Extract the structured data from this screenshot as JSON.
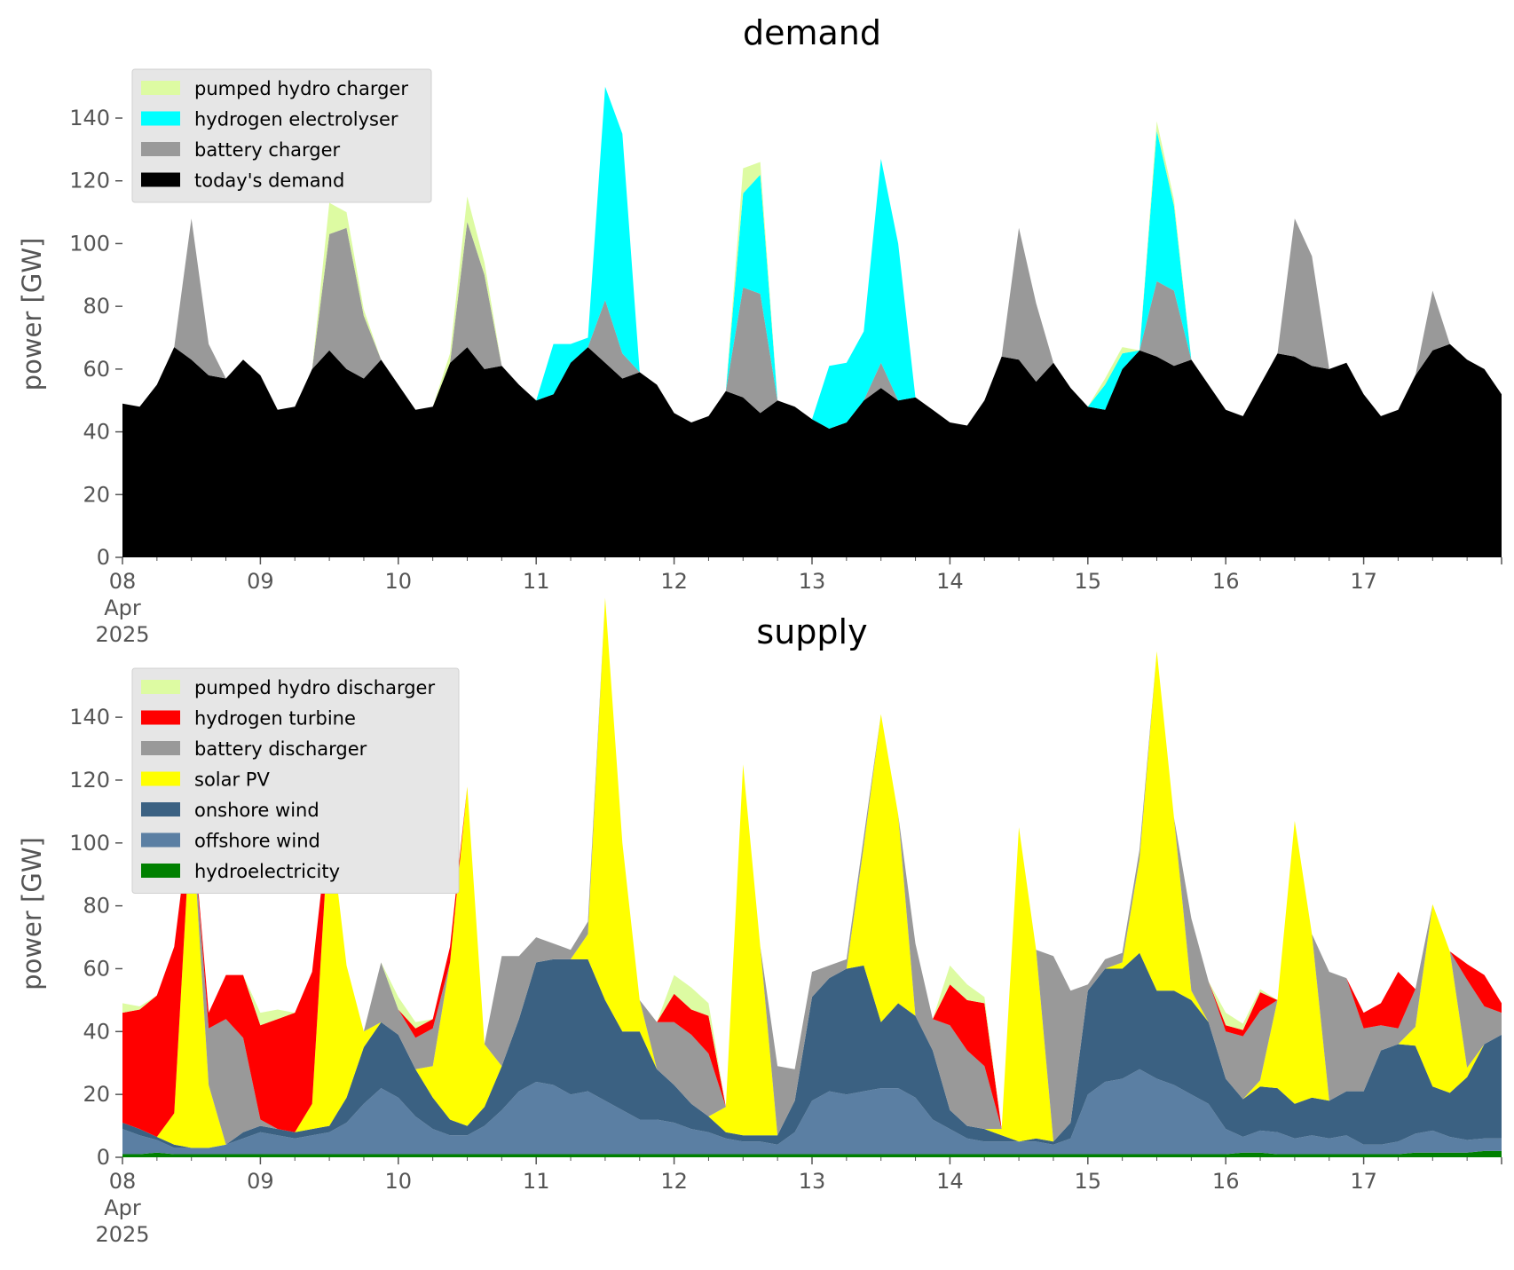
{
  "chart_data": [
    {
      "type": "area",
      "title": "demand",
      "ylabel": "power [GW]",
      "xlabel": "",
      "ylim": [
        0,
        155
      ],
      "yticks": [
        0,
        20,
        40,
        60,
        80,
        100,
        120,
        140
      ],
      "xlim": [
        0,
        10
      ],
      "xticks": [
        {
          "x": 0,
          "label": "08\nApr\n2025"
        },
        {
          "x": 1,
          "label": "09"
        },
        {
          "x": 2,
          "label": "10"
        },
        {
          "x": 3,
          "label": "11"
        },
        {
          "x": 4,
          "label": "12"
        },
        {
          "x": 5,
          "label": "13"
        },
        {
          "x": 6,
          "label": "14"
        },
        {
          "x": 7,
          "label": "15"
        },
        {
          "x": 8,
          "label": "16"
        },
        {
          "x": 9,
          "label": "17"
        }
      ],
      "grid": false,
      "legend_position": "upper-left",
      "legend_order": [
        "pumped hydro charger",
        "hydrogen electrolyser",
        "battery charger",
        "today's demand"
      ],
      "x": [
        0,
        0.125,
        0.25,
        0.375,
        0.5,
        0.625,
        0.75,
        0.875,
        1,
        1.125,
        1.25,
        1.375,
        1.5,
        1.625,
        1.75,
        1.875,
        2,
        2.125,
        2.25,
        2.375,
        2.5,
        2.625,
        2.75,
        2.875,
        3,
        3.125,
        3.25,
        3.375,
        3.5,
        3.625,
        3.75,
        3.875,
        4,
        4.125,
        4.25,
        4.375,
        4.5,
        4.625,
        4.75,
        4.875,
        5,
        5.125,
        5.25,
        5.375,
        5.5,
        5.625,
        5.75,
        5.875,
        6,
        6.125,
        6.25,
        6.375,
        6.5,
        6.625,
        6.75,
        6.875,
        7,
        7.125,
        7.25,
        7.375,
        7.5,
        7.625,
        7.75,
        7.875,
        8,
        8.125,
        8.25,
        8.375,
        8.5,
        8.625,
        8.75,
        8.875,
        9,
        9.125,
        9.25,
        9.375,
        9.5,
        9.625,
        9.75,
        9.875,
        10
      ],
      "series": [
        {
          "name": "today's demand",
          "color": "#000000",
          "values": [
            49,
            48,
            55,
            67,
            63,
            58,
            57,
            63,
            58,
            47,
            48,
            60,
            66,
            60,
            57,
            63,
            55,
            47,
            48,
            62,
            67,
            60,
            61,
            55,
            50,
            52,
            62,
            67,
            62,
            57,
            59,
            55,
            46,
            43,
            45,
            53,
            51,
            46,
            50,
            48,
            44,
            41,
            43,
            50,
            54,
            50,
            51,
            47,
            43,
            42,
            50,
            64,
            63,
            56,
            62,
            54,
            48,
            47,
            60,
            66,
            64,
            61,
            63,
            55,
            47,
            45,
            55,
            65,
            64,
            61,
            60,
            62,
            52,
            45,
            47,
            58,
            66,
            68,
            63,
            60,
            52
          ]
        },
        {
          "name": "battery charger",
          "color": "#999999",
          "values": [
            0,
            0,
            0,
            0,
            45,
            10,
            0,
            0,
            0,
            0,
            0,
            0,
            37,
            45,
            20,
            0,
            0,
            0,
            0,
            0,
            40,
            30,
            0,
            0,
            0,
            0,
            0,
            0,
            20,
            8,
            0,
            0,
            0,
            0,
            0,
            0,
            35,
            38,
            0,
            0,
            0,
            0,
            0,
            0,
            8,
            0,
            0,
            0,
            0,
            0,
            0,
            0,
            42,
            25,
            0,
            0,
            0,
            0,
            0,
            0,
            24,
            24,
            0,
            0,
            0,
            0,
            0,
            0,
            44,
            35,
            0,
            0,
            0,
            0,
            0,
            0,
            19,
            0,
            0,
            0,
            0
          ]
        },
        {
          "name": "hydrogen electrolyser",
          "color": "#00ffff",
          "values": [
            0,
            0,
            0,
            0,
            0,
            0,
            0,
            0,
            0,
            0,
            0,
            0,
            0,
            0,
            0,
            0,
            0,
            0,
            0,
            0,
            0,
            0,
            0,
            0,
            0,
            16,
            6,
            3,
            68,
            70,
            0,
            0,
            0,
            0,
            0,
            0,
            30,
            38,
            0,
            0,
            0,
            20,
            19,
            22,
            65,
            50,
            0,
            0,
            0,
            0,
            0,
            0,
            0,
            0,
            0,
            0,
            0,
            8,
            5,
            0,
            48,
            27,
            0,
            0,
            0,
            0,
            0,
            0,
            0,
            0,
            0,
            0,
            0,
            0,
            0,
            0,
            0,
            0,
            0,
            0,
            0
          ]
        },
        {
          "name": "pumped hydro charger",
          "color": "#ddfba2",
          "values": [
            0,
            0,
            0,
            0,
            0,
            0,
            0,
            0,
            0,
            0,
            0,
            0,
            10,
            5,
            2,
            0,
            0,
            0,
            0,
            3,
            8,
            4,
            0,
            0,
            0,
            0,
            0,
            0,
            0,
            0,
            0,
            0,
            0,
            0,
            0,
            0,
            8,
            4,
            0,
            0,
            0,
            0,
            0,
            0,
            0,
            0,
            0,
            0,
            0,
            0,
            0,
            0,
            0,
            0,
            0,
            0,
            0,
            2,
            2,
            0,
            3,
            2,
            0,
            0,
            0,
            0,
            0,
            0,
            0,
            0,
            0,
            0,
            0,
            0,
            0,
            0,
            0,
            0,
            0,
            0,
            0
          ]
        }
      ]
    },
    {
      "type": "area",
      "title": "supply",
      "ylabel": "power [GW]",
      "xlabel": "",
      "ylim": [
        0,
        155
      ],
      "yticks": [
        0,
        20,
        40,
        60,
        80,
        100,
        120,
        140
      ],
      "xlim": [
        0,
        10
      ],
      "xticks": [
        {
          "x": 0,
          "label": "08\nApr\n2025"
        },
        {
          "x": 1,
          "label": "09"
        },
        {
          "x": 2,
          "label": "10"
        },
        {
          "x": 3,
          "label": "11"
        },
        {
          "x": 4,
          "label": "12"
        },
        {
          "x": 5,
          "label": "13"
        },
        {
          "x": 6,
          "label": "14"
        },
        {
          "x": 7,
          "label": "15"
        },
        {
          "x": 8,
          "label": "16"
        },
        {
          "x": 9,
          "label": "17"
        }
      ],
      "grid": false,
      "legend_position": "upper-left",
      "legend_order": [
        "pumped hydro discharger",
        "hydrogen turbine",
        "battery discharger",
        "solar PV",
        "onshore wind",
        "offshore wind",
        "hydroelectricity"
      ],
      "x": [
        0,
        0.125,
        0.25,
        0.375,
        0.5,
        0.625,
        0.75,
        0.875,
        1,
        1.125,
        1.25,
        1.375,
        1.5,
        1.625,
        1.75,
        1.875,
        2,
        2.125,
        2.25,
        2.375,
        2.5,
        2.625,
        2.75,
        2.875,
        3,
        3.125,
        3.25,
        3.375,
        3.5,
        3.625,
        3.75,
        3.875,
        4,
        4.125,
        4.25,
        4.375,
        4.5,
        4.625,
        4.75,
        4.875,
        5,
        5.125,
        5.25,
        5.375,
        5.5,
        5.625,
        5.75,
        5.875,
        6,
        6.125,
        6.25,
        6.375,
        6.5,
        6.625,
        6.75,
        6.875,
        7,
        7.125,
        7.25,
        7.375,
        7.5,
        7.625,
        7.75,
        7.875,
        8,
        8.125,
        8.25,
        8.375,
        8.5,
        8.625,
        8.75,
        8.875,
        9,
        9.125,
        9.25,
        9.375,
        9.5,
        9.625,
        9.75,
        9.875,
        10
      ],
      "series": [
        {
          "name": "hydroelectricity",
          "color": "#008000",
          "values": [
            1,
            1,
            1.5,
            1,
            1,
            1,
            1,
            1,
            1,
            1,
            1,
            1,
            1,
            1,
            1,
            1,
            1,
            1,
            1,
            1,
            1,
            1,
            1,
            1,
            1,
            1,
            1,
            1,
            1,
            1,
            1,
            1,
            1,
            1,
            1,
            1,
            1,
            1,
            1,
            1,
            1,
            1,
            1,
            1,
            1,
            1,
            1,
            1,
            1,
            1,
            1,
            1,
            1,
            1,
            1,
            1,
            1,
            1,
            1,
            1,
            1,
            1,
            1,
            1,
            1,
            1.5,
            1.5,
            1,
            1,
            1,
            1,
            1,
            1,
            1,
            1,
            1.5,
            1.5,
            1.5,
            1.5,
            2,
            2
          ]
        },
        {
          "name": "offshore wind",
          "color": "#5b7fa3",
          "values": [
            8,
            6,
            4,
            2,
            2,
            2,
            3,
            5,
            7,
            6,
            5,
            6,
            7,
            10,
            16,
            21,
            18,
            12,
            8,
            6,
            6,
            9,
            14,
            20,
            23,
            22,
            19,
            20,
            17,
            14,
            11,
            11,
            10,
            8,
            7,
            5,
            4,
            4,
            3,
            7,
            17,
            20,
            19,
            20,
            21,
            21,
            18,
            11,
            8,
            5,
            4,
            4,
            4,
            4,
            3,
            5,
            19,
            23,
            24,
            27,
            24,
            22,
            19,
            16,
            8,
            5,
            7,
            7,
            5,
            6,
            5,
            6,
            3,
            3,
            4,
            6,
            7,
            5,
            4,
            4,
            4
          ]
        },
        {
          "name": "onshore wind",
          "color": "#3b6182",
          "values": [
            2,
            2,
            1,
            1,
            0,
            0,
            0,
            2,
            2,
            2,
            2,
            2,
            2,
            8,
            18,
            21,
            20,
            15,
            10,
            5,
            3,
            6,
            14,
            23,
            38,
            40,
            43,
            42,
            32,
            25,
            28,
            16,
            12,
            8,
            5,
            2,
            2,
            2,
            3,
            10,
            33,
            36,
            40,
            40,
            21,
            27,
            26,
            22,
            6,
            4,
            4,
            2,
            0,
            1,
            1,
            5,
            33,
            36,
            35,
            37,
            28,
            30,
            30,
            26,
            16,
            12,
            14,
            14,
            11,
            12,
            12,
            14,
            17,
            30,
            31,
            28,
            14,
            14,
            20,
            30,
            33
          ]
        },
        {
          "name": "solar PV",
          "color": "#ffff00",
          "values": [
            0,
            0,
            0,
            10,
            108,
            20,
            0,
            0,
            0,
            0,
            0,
            8,
            98,
            42,
            5,
            0,
            0,
            0,
            10,
            50,
            108,
            20,
            0,
            0,
            0,
            0,
            0,
            8,
            128,
            60,
            10,
            0,
            0,
            0,
            0,
            8,
            118,
            60,
            0,
            0,
            0,
            0,
            0,
            38,
            98,
            60,
            0,
            0,
            0,
            0,
            0,
            2,
            100,
            60,
            0,
            0,
            0,
            0,
            2,
            30,
            108,
            55,
            3,
            0,
            0,
            0,
            2,
            28,
            90,
            52,
            0,
            0,
            0,
            0,
            0,
            6,
            58,
            45,
            3,
            0,
            0
          ]
        },
        {
          "name": "battery discharger",
          "color": "#999999",
          "values": [
            0,
            0,
            0,
            0,
            0,
            18,
            40,
            30,
            2,
            0,
            0,
            0,
            0,
            0,
            0,
            19,
            8,
            10,
            12,
            0,
            0,
            0,
            35,
            20,
            8,
            5,
            3,
            4,
            0,
            0,
            0,
            15,
            20,
            22,
            20,
            0,
            0,
            0,
            22,
            10,
            8,
            4,
            3,
            3,
            0,
            0,
            23,
            10,
            27,
            24,
            20,
            0,
            0,
            0,
            59,
            42,
            2,
            3,
            3,
            3,
            0,
            0,
            23,
            13,
            15,
            20,
            22,
            0,
            0,
            0,
            41,
            36,
            20,
            8,
            5,
            12,
            0,
            0,
            28,
            12,
            7
          ]
        },
        {
          "name": "hydrogen turbine",
          "color": "#ff0000",
          "values": [
            35,
            38,
            45,
            53,
            0,
            5,
            14,
            20,
            30,
            35,
            38,
            42,
            0,
            0,
            0,
            0,
            0,
            3,
            3,
            5,
            0,
            0,
            0,
            0,
            0,
            0,
            0,
            0,
            0,
            0,
            0,
            0,
            9,
            8,
            12,
            0,
            0,
            0,
            0,
            0,
            0,
            0,
            0,
            0,
            0,
            0,
            0,
            0,
            13,
            16,
            20,
            0,
            0,
            0,
            0,
            0,
            0,
            0,
            0,
            0,
            0,
            0,
            0,
            0,
            2,
            2,
            6,
            0,
            0,
            0,
            0,
            0,
            5,
            7,
            18,
            0,
            0,
            0,
            5,
            10,
            3
          ]
        },
        {
          "name": "pumped hydro discharger",
          "color": "#ddfba2",
          "values": [
            3,
            1,
            0,
            0,
            0,
            0,
            0,
            0,
            4,
            3,
            0,
            0,
            0,
            0,
            0,
            0,
            4,
            2,
            0,
            0,
            0,
            0,
            0,
            0,
            0,
            0,
            0,
            0,
            0,
            0,
            0,
            0,
            6,
            7,
            4,
            0,
            0,
            0,
            0,
            0,
            0,
            0,
            0,
            0,
            0,
            0,
            0,
            0,
            6,
            5,
            2,
            0,
            0,
            0,
            0,
            0,
            0,
            0,
            0,
            0,
            0,
            0,
            0,
            0,
            4,
            2,
            1,
            0,
            0,
            0,
            0,
            0,
            0,
            0,
            0,
            0,
            0,
            0,
            0,
            0,
            0
          ]
        }
      ]
    }
  ]
}
